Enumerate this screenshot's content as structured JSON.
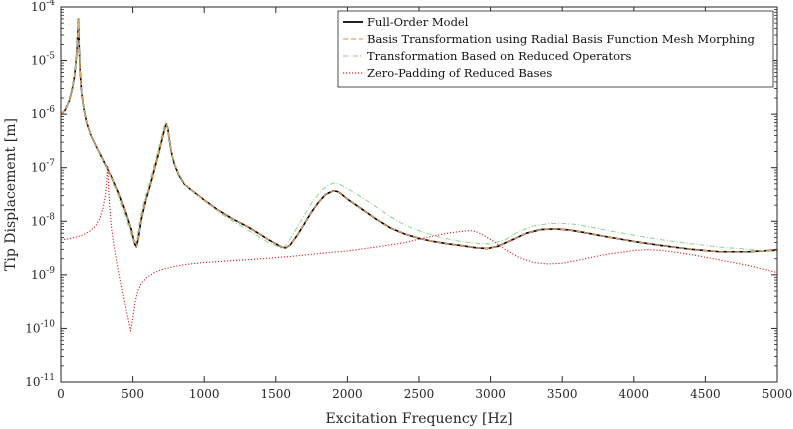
{
  "chart_data": {
    "type": "line",
    "title": "",
    "xlabel": "Excitation Frequency [Hz]",
    "ylabel": "Tip Displacement [m]",
    "xlim": [
      0,
      5000
    ],
    "ylim": [
      1e-11,
      0.0001
    ],
    "yscale": "log",
    "grid": false,
    "legend_position": "top-right",
    "x_ticks": [
      0,
      500,
      1000,
      1500,
      2000,
      2500,
      3000,
      3500,
      4000,
      4500,
      5000
    ],
    "x_tick_labels": [
      "0",
      "500",
      "1000",
      "1500",
      "2000",
      "2500",
      "3000",
      "3500",
      "4000",
      "4500",
      "5000"
    ],
    "y_ticks": [
      1e-11,
      1e-10,
      1e-09,
      1e-08,
      1e-07,
      1e-06,
      1e-05,
      0.0001
    ],
    "y_tick_exponents": [
      "-11",
      "-10",
      "-9",
      "-8",
      "-7",
      "-6",
      "-5",
      "-4"
    ],
    "y_tick_base": "10",
    "series": [
      {
        "name": "Full-Order Model",
        "color": "#000000",
        "style": "solid",
        "x": [
          0,
          30,
          60,
          80,
          95,
          105,
          112,
          118,
          123,
          128,
          135,
          145,
          160,
          180,
          210,
          250,
          300,
          350,
          400,
          450,
          490,
          510,
          525,
          540,
          560,
          590,
          620,
          650,
          680,
          700,
          720,
          735,
          745,
          755,
          770,
          790,
          820,
          860,
          900,
          1000,
          1100,
          1200,
          1300,
          1400,
          1450,
          1500,
          1540,
          1570,
          1600,
          1650,
          1700,
          1750,
          1800,
          1850,
          1900,
          1930,
          1960,
          2000,
          2100,
          2200,
          2300,
          2400,
          2500,
          2600,
          2700,
          2800,
          2900,
          2980,
          3050,
          3150,
          3250,
          3350,
          3450,
          3550,
          3650,
          3800,
          4000,
          4200,
          4400,
          4600,
          4800,
          5000
        ],
        "y": [
          1e-06,
          1.2e-06,
          1.8e-06,
          3e-06,
          5e-06,
          9e-06,
          1.6e-05,
          3.3e-05,
          6e-05,
          1.7e-05,
          6e-06,
          2.5e-06,
          1.3e-06,
          7e-07,
          4e-07,
          2.4e-07,
          1.3e-07,
          7e-08,
          3.5e-08,
          1.5e-08,
          7e-09,
          4e-09,
          3.3e-09,
          5e-09,
          1.1e-08,
          2.4e-08,
          4.5e-08,
          9e-08,
          1.8e-07,
          3e-07,
          5e-07,
          6.5e-07,
          5.5e-07,
          3.5e-07,
          2e-07,
          1.2e-07,
          7.5e-08,
          5e-08,
          4e-08,
          2.5e-08,
          1.6e-08,
          1.1e-08,
          8e-09,
          5.5e-09,
          4.5e-09,
          3.8e-09,
          3.3e-09,
          3.2e-09,
          3.6e-09,
          5.5e-09,
          9e-09,
          1.5e-08,
          2.3e-08,
          3.2e-08,
          3.7e-08,
          3.6e-08,
          3.2e-08,
          2.6e-08,
          1.7e-08,
          1.1e-08,
          7.5e-09,
          5.8e-09,
          4.8e-09,
          4.2e-09,
          3.8e-09,
          3.5e-09,
          3.2e-09,
          3.1e-09,
          3.4e-09,
          4.5e-09,
          6e-09,
          7e-09,
          7.2e-09,
          6.9e-09,
          6.2e-09,
          5.2e-09,
          4.2e-09,
          3.5e-09,
          3e-09,
          2.7e-09,
          2.7e-09,
          2.9e-09
        ]
      },
      {
        "name": "Basis Transformation using Radial Basis Function Mesh Morphing",
        "color": "#f5a05a",
        "style": "dashed",
        "x": [
          0,
          30,
          60,
          80,
          95,
          105,
          112,
          118,
          123,
          128,
          135,
          145,
          160,
          180,
          210,
          250,
          300,
          350,
          400,
          450,
          490,
          510,
          525,
          540,
          560,
          590,
          620,
          650,
          680,
          700,
          720,
          735,
          745,
          755,
          770,
          790,
          820,
          860,
          900,
          1000,
          1100,
          1200,
          1300,
          1400,
          1450,
          1500,
          1540,
          1570,
          1600,
          1650,
          1700,
          1750,
          1800,
          1850,
          1900,
          1930,
          1960,
          2000,
          2100,
          2200,
          2300,
          2400,
          2500,
          2600,
          2700,
          2800,
          2900,
          2980,
          3050,
          3150,
          3250,
          3350,
          3450,
          3550,
          3650,
          3800,
          4000,
          4200,
          4400,
          4600,
          4800,
          5000
        ],
        "y": [
          1e-06,
          1.2e-06,
          1.8e-06,
          3e-06,
          5e-06,
          9e-06,
          1.6e-05,
          3.3e-05,
          6e-05,
          1.7e-05,
          6e-06,
          2.5e-06,
          1.3e-06,
          7e-07,
          4e-07,
          2.4e-07,
          1.3e-07,
          7e-08,
          3.5e-08,
          1.5e-08,
          7e-09,
          4e-09,
          3.3e-09,
          5e-09,
          1.1e-08,
          2.4e-08,
          4.5e-08,
          9e-08,
          1.8e-07,
          3e-07,
          5e-07,
          6.5e-07,
          5.5e-07,
          3.5e-07,
          2e-07,
          1.2e-07,
          7.5e-08,
          5e-08,
          4e-08,
          2.5e-08,
          1.6e-08,
          1.1e-08,
          8e-09,
          5.5e-09,
          4.5e-09,
          3.8e-09,
          3.3e-09,
          3.2e-09,
          3.6e-09,
          5.5e-09,
          9e-09,
          1.5e-08,
          2.3e-08,
          3.2e-08,
          3.7e-08,
          3.6e-08,
          3.2e-08,
          2.6e-08,
          1.7e-08,
          1.1e-08,
          7.5e-09,
          5.8e-09,
          4.8e-09,
          4.2e-09,
          3.8e-09,
          3.5e-09,
          3.2e-09,
          3.1e-09,
          3.4e-09,
          4.5e-09,
          6e-09,
          7e-09,
          7.2e-09,
          6.9e-09,
          6.2e-09,
          5.2e-09,
          4.2e-09,
          3.5e-09,
          3e-09,
          2.7e-09,
          2.7e-09,
          2.9e-09
        ]
      },
      {
        "name": "Transformation Based on Reduced Operators",
        "color": "#9fd39a",
        "style": "dashdot",
        "x": [
          0,
          30,
          60,
          80,
          95,
          105,
          112,
          118,
          123,
          128,
          135,
          145,
          160,
          180,
          210,
          250,
          300,
          350,
          400,
          450,
          490,
          505,
          520,
          535,
          555,
          585,
          615,
          645,
          675,
          695,
          715,
          730,
          740,
          752,
          768,
          790,
          820,
          860,
          900,
          1000,
          1100,
          1200,
          1300,
          1400,
          1450,
          1500,
          1530,
          1555,
          1585,
          1640,
          1700,
          1760,
          1820,
          1870,
          1910,
          1940,
          1980,
          2050,
          2150,
          2250,
          2350,
          2450,
          2550,
          2650,
          2750,
          2850,
          2950,
          3000,
          3100,
          3200,
          3300,
          3400,
          3480,
          3580,
          3700,
          3850,
          4000,
          4200,
          4400,
          4600,
          4800,
          5000
        ],
        "y": [
          1e-06,
          1.2e-06,
          1.8e-06,
          3e-06,
          5e-06,
          9e-06,
          1.6e-05,
          3.3e-05,
          6e-05,
          1.7e-05,
          6e-06,
          2.5e-06,
          1.3e-06,
          7e-07,
          4e-07,
          2.4e-07,
          1.3e-07,
          6.5e-08,
          3e-08,
          1.2e-08,
          5.5e-09,
          4.2e-09,
          4e-09,
          6e-09,
          1.3e-08,
          2.8e-08,
          5e-08,
          1e-07,
          2e-07,
          3.3e-07,
          5.5e-07,
          7e-07,
          6e-07,
          3.8e-07,
          2.2e-07,
          1.3e-07,
          8e-08,
          5.2e-08,
          4e-08,
          2.4e-08,
          1.5e-08,
          1e-08,
          7e-09,
          4.8e-09,
          4e-09,
          3.5e-09,
          3.2e-09,
          3.3e-09,
          4e-09,
          7e-09,
          1.3e-08,
          2.4e-08,
          3.8e-08,
          4.8e-08,
          5.2e-08,
          5e-08,
          4.4e-08,
          3.4e-08,
          2.3e-08,
          1.5e-08,
          1e-08,
          7.5e-09,
          6e-09,
          5e-09,
          4.4e-09,
          4e-09,
          3.8e-09,
          3.8e-09,
          4.5e-09,
          6.5e-09,
          8.2e-09,
          9e-09,
          9.2e-09,
          8.8e-09,
          7.8e-09,
          6.5e-09,
          5.5e-09,
          4.5e-09,
          3.8e-09,
          3.3e-09,
          3e-09,
          2.7e-09
        ]
      },
      {
        "name": "Zero-Padding of Reduced Bases",
        "color": "#d42020",
        "style": "dotted",
        "x": [
          0,
          50,
          100,
          150,
          200,
          240,
          270,
          295,
          310,
          320,
          326,
          332,
          340,
          355,
          380,
          410,
          440,
          465,
          485,
          500,
          515,
          535,
          560,
          600,
          650,
          700,
          800,
          900,
          1000,
          1200,
          1400,
          1600,
          1800,
          2000,
          2200,
          2400,
          2550,
          2700,
          2800,
          2860,
          2900,
          2950,
          3000,
          3100,
          3200,
          3300,
          3400,
          3500,
          3600,
          3800,
          4000,
          4100,
          4200,
          4400,
          4600,
          4800,
          5000
        ],
        "y": [
          4.5e-09,
          4.7e-09,
          5e-09,
          5.5e-09,
          6.5e-09,
          8e-09,
          1.1e-08,
          1.8e-08,
          3e-08,
          5.5e-08,
          1.1e-07,
          5e-08,
          2e-08,
          7e-09,
          2.5e-09,
          9e-10,
          3.5e-10,
          1.6e-10,
          9e-11,
          1.5e-10,
          3e-10,
          5e-10,
          7e-10,
          9e-10,
          1.1e-09,
          1.25e-09,
          1.45e-09,
          1.6e-09,
          1.7e-09,
          1.85e-09,
          2e-09,
          2.2e-09,
          2.5e-09,
          2.8e-09,
          3.3e-09,
          4e-09,
          5e-09,
          6e-09,
          6.5e-09,
          6.7e-09,
          6.4e-09,
          5.5e-09,
          4.6e-09,
          3e-09,
          2.1e-09,
          1.7e-09,
          1.6e-09,
          1.65e-09,
          1.85e-09,
          2.4e-09,
          2.85e-09,
          2.95e-09,
          2.85e-09,
          2.4e-09,
          1.9e-09,
          1.5e-09,
          1.1e-09
        ]
      }
    ]
  }
}
